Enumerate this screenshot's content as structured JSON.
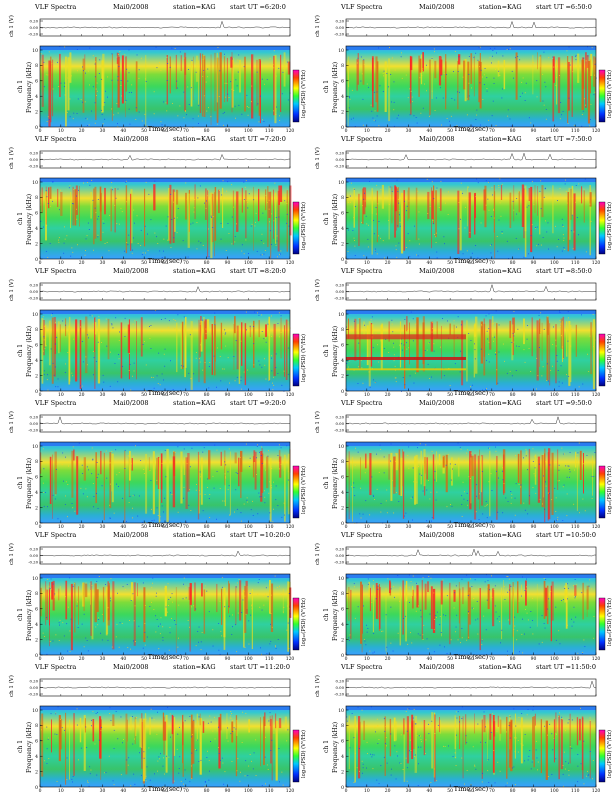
{
  "header": {
    "prefix": "VLF Spectra",
    "date": "Mai0/2008",
    "station": "station=KAG",
    "start_label": "start UT ="
  },
  "labels": {
    "xlabel": "Time (sec)",
    "ylabel_spec": "Frequency (kHz)",
    "ylabel_ch": "ch 1",
    "ylabel_wave": "ch 1 (V)",
    "colorbar": "log₁₀(PSD) (V²/Hz)"
  },
  "colors": {
    "low": "#1a66ff",
    "mid": "#22c84a",
    "high": "#ff2020",
    "peak": "#cc0000",
    "line": "#000000"
  },
  "chart_data": [
    {
      "type": "heatmap",
      "start_ut": "6:20:0",
      "xlim": [
        0,
        120
      ],
      "ylim": [
        0,
        10
      ],
      "xticks": [
        0,
        10,
        20,
        30,
        40,
        50,
        60,
        70,
        80,
        90,
        100,
        110,
        120
      ],
      "yticks": [
        0,
        2,
        4,
        6,
        8,
        10
      ],
      "wave_ticks": [
        "0.20",
        "0.00",
        "-0.20"
      ]
    },
    {
      "type": "heatmap",
      "start_ut": "6:50:0",
      "xlim": [
        0,
        120
      ],
      "ylim": [
        0,
        10
      ],
      "xticks": [
        0,
        10,
        20,
        30,
        40,
        50,
        60,
        70,
        80,
        90,
        100,
        110,
        120
      ],
      "yticks": [
        0,
        2,
        4,
        6,
        8,
        10
      ],
      "wave_ticks": [
        "0.20",
        "0.00",
        "-0.20"
      ]
    },
    {
      "type": "heatmap",
      "start_ut": "7:20:0",
      "xlim": [
        0,
        120
      ],
      "ylim": [
        0,
        10
      ],
      "xticks": [
        0,
        10,
        20,
        30,
        40,
        50,
        60,
        70,
        80,
        90,
        100,
        110,
        120
      ],
      "yticks": [
        0,
        2,
        4,
        6,
        8,
        10
      ],
      "wave_ticks": [
        "0.20",
        "0.00",
        "-0.20"
      ]
    },
    {
      "type": "heatmap",
      "start_ut": "7:50:0",
      "xlim": [
        0,
        120
      ],
      "ylim": [
        0,
        10
      ],
      "xticks": [
        0,
        10,
        20,
        30,
        40,
        50,
        60,
        70,
        80,
        90,
        100,
        110,
        120
      ],
      "yticks": [
        0,
        2,
        4,
        6,
        8,
        10
      ],
      "wave_ticks": [
        "0.20",
        "0.00",
        "-0.20"
      ]
    },
    {
      "type": "heatmap",
      "start_ut": "8:20:0",
      "xlim": [
        0,
        120
      ],
      "ylim": [
        0,
        10
      ],
      "xticks": [
        0,
        10,
        20,
        30,
        40,
        50,
        60,
        70,
        80,
        90,
        100,
        110,
        120
      ],
      "yticks": [
        0,
        2,
        4,
        6,
        8,
        10
      ],
      "wave_ticks": [
        "0.20",
        "0.00",
        "-0.20"
      ]
    },
    {
      "type": "heatmap",
      "start_ut": "8:50:0",
      "xlim": [
        0,
        120
      ],
      "ylim": [
        0,
        10
      ],
      "xticks": [
        0,
        10,
        20,
        30,
        40,
        50,
        60,
        70,
        80,
        90,
        100,
        110,
        120
      ],
      "yticks": [
        0,
        2,
        4,
        6,
        8,
        10
      ],
      "wave_ticks": [
        "0.20",
        "0.00",
        "-0.20"
      ]
    },
    {
      "type": "heatmap",
      "start_ut": "9:20:0",
      "xlim": [
        0,
        120
      ],
      "ylim": [
        0,
        10
      ],
      "xticks": [
        0,
        10,
        20,
        30,
        40,
        50,
        60,
        70,
        80,
        90,
        100,
        110,
        120
      ],
      "yticks": [
        0,
        2,
        4,
        6,
        8,
        10
      ],
      "wave_ticks": [
        "0.20",
        "0.00",
        "-0.20"
      ]
    },
    {
      "type": "heatmap",
      "start_ut": "9:50:0",
      "xlim": [
        0,
        120
      ],
      "ylim": [
        0,
        10
      ],
      "xticks": [
        0,
        10,
        20,
        30,
        40,
        50,
        60,
        70,
        80,
        90,
        100,
        110,
        120
      ],
      "yticks": [
        0,
        2,
        4,
        6,
        8,
        10
      ],
      "wave_ticks": [
        "0.20",
        "0.00",
        "-0.20"
      ]
    },
    {
      "type": "heatmap",
      "start_ut": "10:20:0",
      "xlim": [
        0,
        120
      ],
      "ylim": [
        0,
        10
      ],
      "xticks": [
        0,
        10,
        20,
        30,
        40,
        50,
        60,
        70,
        80,
        90,
        100,
        110,
        120
      ],
      "yticks": [
        0,
        2,
        4,
        6,
        8,
        10
      ],
      "wave_ticks": [
        "0.20",
        "0.00",
        "-0.20"
      ]
    },
    {
      "type": "heatmap",
      "start_ut": "10:50:0",
      "xlim": [
        0,
        120
      ],
      "ylim": [
        0,
        10
      ],
      "xticks": [
        0,
        10,
        20,
        30,
        40,
        50,
        60,
        70,
        80,
        90,
        100,
        110,
        120
      ],
      "yticks": [
        0,
        2,
        4,
        6,
        8,
        10
      ],
      "wave_ticks": [
        "0.20",
        "0.00",
        "-0.20"
      ]
    },
    {
      "type": "heatmap",
      "start_ut": "11:20:0",
      "xlim": [
        0,
        120
      ],
      "ylim": [
        0,
        10
      ],
      "xticks": [
        0,
        10,
        20,
        30,
        40,
        50,
        60,
        70,
        80,
        90,
        100,
        110,
        120
      ],
      "yticks": [
        0,
        2,
        4,
        6,
        8,
        10
      ],
      "wave_ticks": [
        "0.20",
        "0.00",
        "-0.20"
      ]
    },
    {
      "type": "heatmap",
      "start_ut": "11:50:0",
      "xlim": [
        0,
        120
      ],
      "ylim": [
        0,
        10
      ],
      "xticks": [
        0,
        10,
        20,
        30,
        40,
        50,
        60,
        70,
        80,
        90,
        100,
        110,
        120
      ],
      "yticks": [
        0,
        2,
        4,
        6,
        8,
        10
      ],
      "wave_ticks": [
        "0.20",
        "0.00",
        "-0.20"
      ]
    }
  ]
}
